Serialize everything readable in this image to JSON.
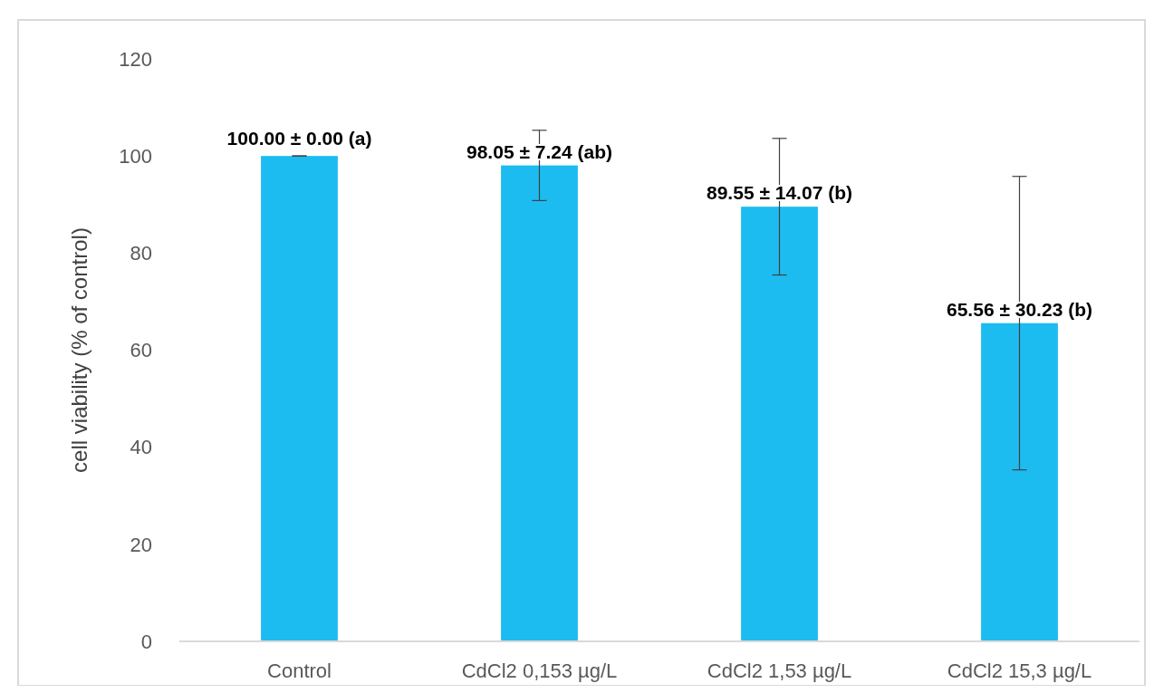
{
  "chart_data": {
    "type": "bar",
    "ylabel": "cell viability (% of control)",
    "categories": [
      "Control",
      "CdCl2 0,153 µg/L",
      "CdCl2 1,53 µg/L",
      "CdCl2 15,3 µg/L"
    ],
    "values": [
      100.0,
      98.05,
      89.55,
      65.56
    ],
    "errors": [
      0.0,
      7.24,
      14.07,
      30.23
    ],
    "value_labels": [
      "100.00 ± 0.00 (a)",
      "98.05 ± 7.24 (ab)",
      "89.55 ± 14.07 (b)",
      "65.56 ± 30.23 (b)"
    ],
    "color": "#1cbcf0",
    "ylim": [
      0,
      120
    ],
    "yticks": [
      0,
      20,
      40,
      60,
      80,
      100,
      120
    ],
    "grid": false
  }
}
